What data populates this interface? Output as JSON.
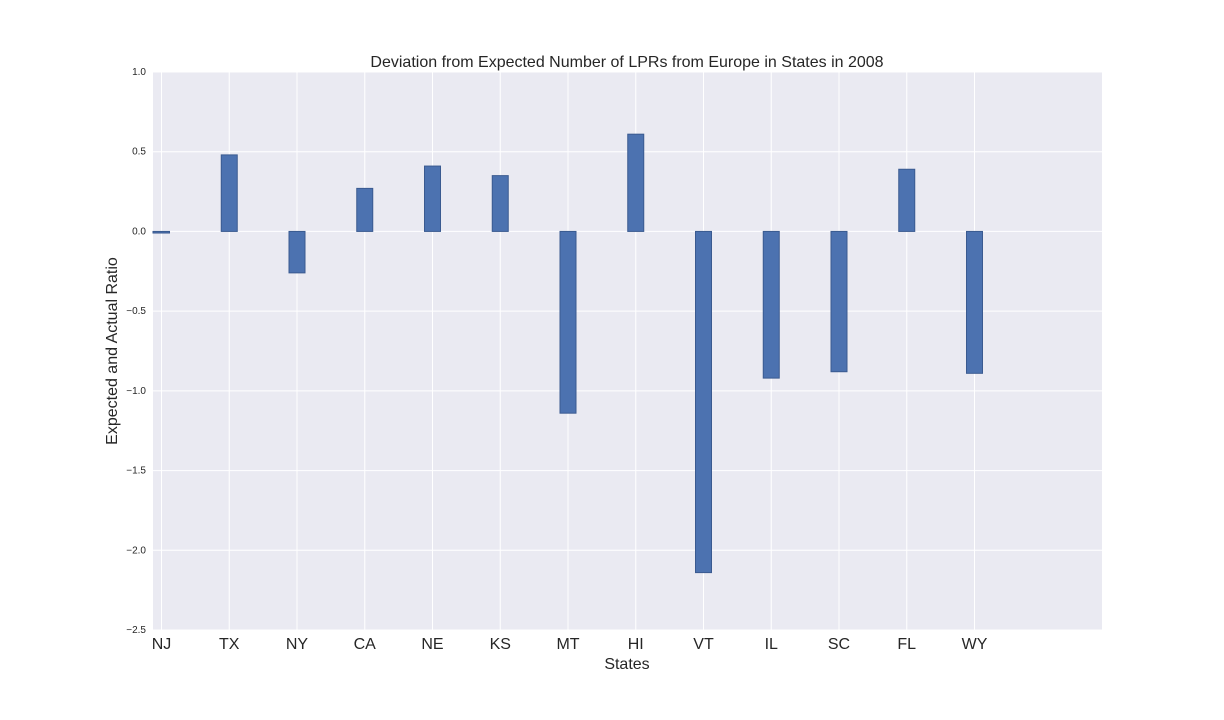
{
  "chart_data": {
    "type": "bar",
    "title": "Deviation from Expected Number of LPRs from Europe in States in 2008",
    "xlabel": "States",
    "ylabel": "Expected and Actual Ratio",
    "categories": [
      "NJ",
      "TX",
      "NY",
      "CA",
      "NE",
      "KS",
      "MT",
      "HI",
      "VT",
      "IL",
      "SC",
      "FL",
      "WY"
    ],
    "values": [
      -0.01,
      0.48,
      -0.26,
      0.27,
      0.41,
      0.35,
      -1.14,
      0.61,
      -2.14,
      -0.92,
      -0.88,
      0.39,
      -0.89
    ],
    "ylim": [
      -2.5,
      1.0
    ],
    "yticks": [
      "1.0",
      "0.5",
      "0.0",
      "−0.5",
      "−1.0",
      "−1.5",
      "−2.0",
      "−2.5"
    ],
    "grid": true,
    "colors": {
      "bar_fill": "#4c72b0",
      "bar_edge": "#3a5a90",
      "plot_background": "#eaeaf2",
      "grid": "#ffffff"
    }
  }
}
